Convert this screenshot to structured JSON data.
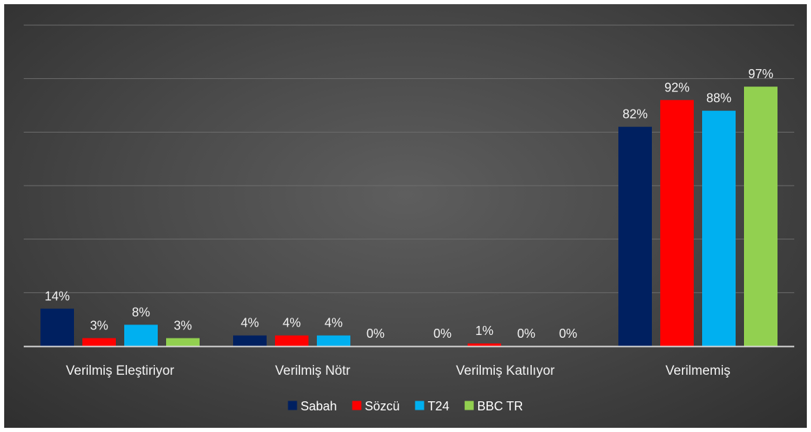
{
  "chart_data": {
    "type": "bar",
    "categories": [
      "Verilmiş Eleştiriyor",
      "Verilmiş Nötr",
      "Verilmiş Katılıyor",
      "Verilmemiş"
    ],
    "series": [
      {
        "name": "Sabah",
        "color": "#002060",
        "values": [
          14,
          4,
          0,
          82
        ],
        "labels": [
          "14%",
          "4%",
          "0%",
          "82%"
        ]
      },
      {
        "name": "Sözcü",
        "color": "#ff0000",
        "values": [
          3,
          4,
          1,
          92
        ],
        "labels": [
          "3%",
          "4%",
          "1%",
          "92%"
        ]
      },
      {
        "name": "T24",
        "color": "#00b0f0",
        "values": [
          8,
          4,
          0,
          88
        ],
        "labels": [
          "8%",
          "4%",
          "0%",
          "88%"
        ]
      },
      {
        "name": "BBC TR",
        "color": "#92d050",
        "values": [
          3,
          0,
          0,
          97
        ],
        "labels": [
          "3%",
          "0%",
          "0%",
          "97%"
        ]
      }
    ],
    "title": "",
    "xlabel": "",
    "ylabel": "",
    "ylim": [
      0,
      120
    ],
    "y_gridlines": [
      0,
      20,
      40,
      60,
      80,
      100,
      120
    ],
    "y_tick_labels_visible": false,
    "grid": true,
    "legend_position": "bottom"
  }
}
